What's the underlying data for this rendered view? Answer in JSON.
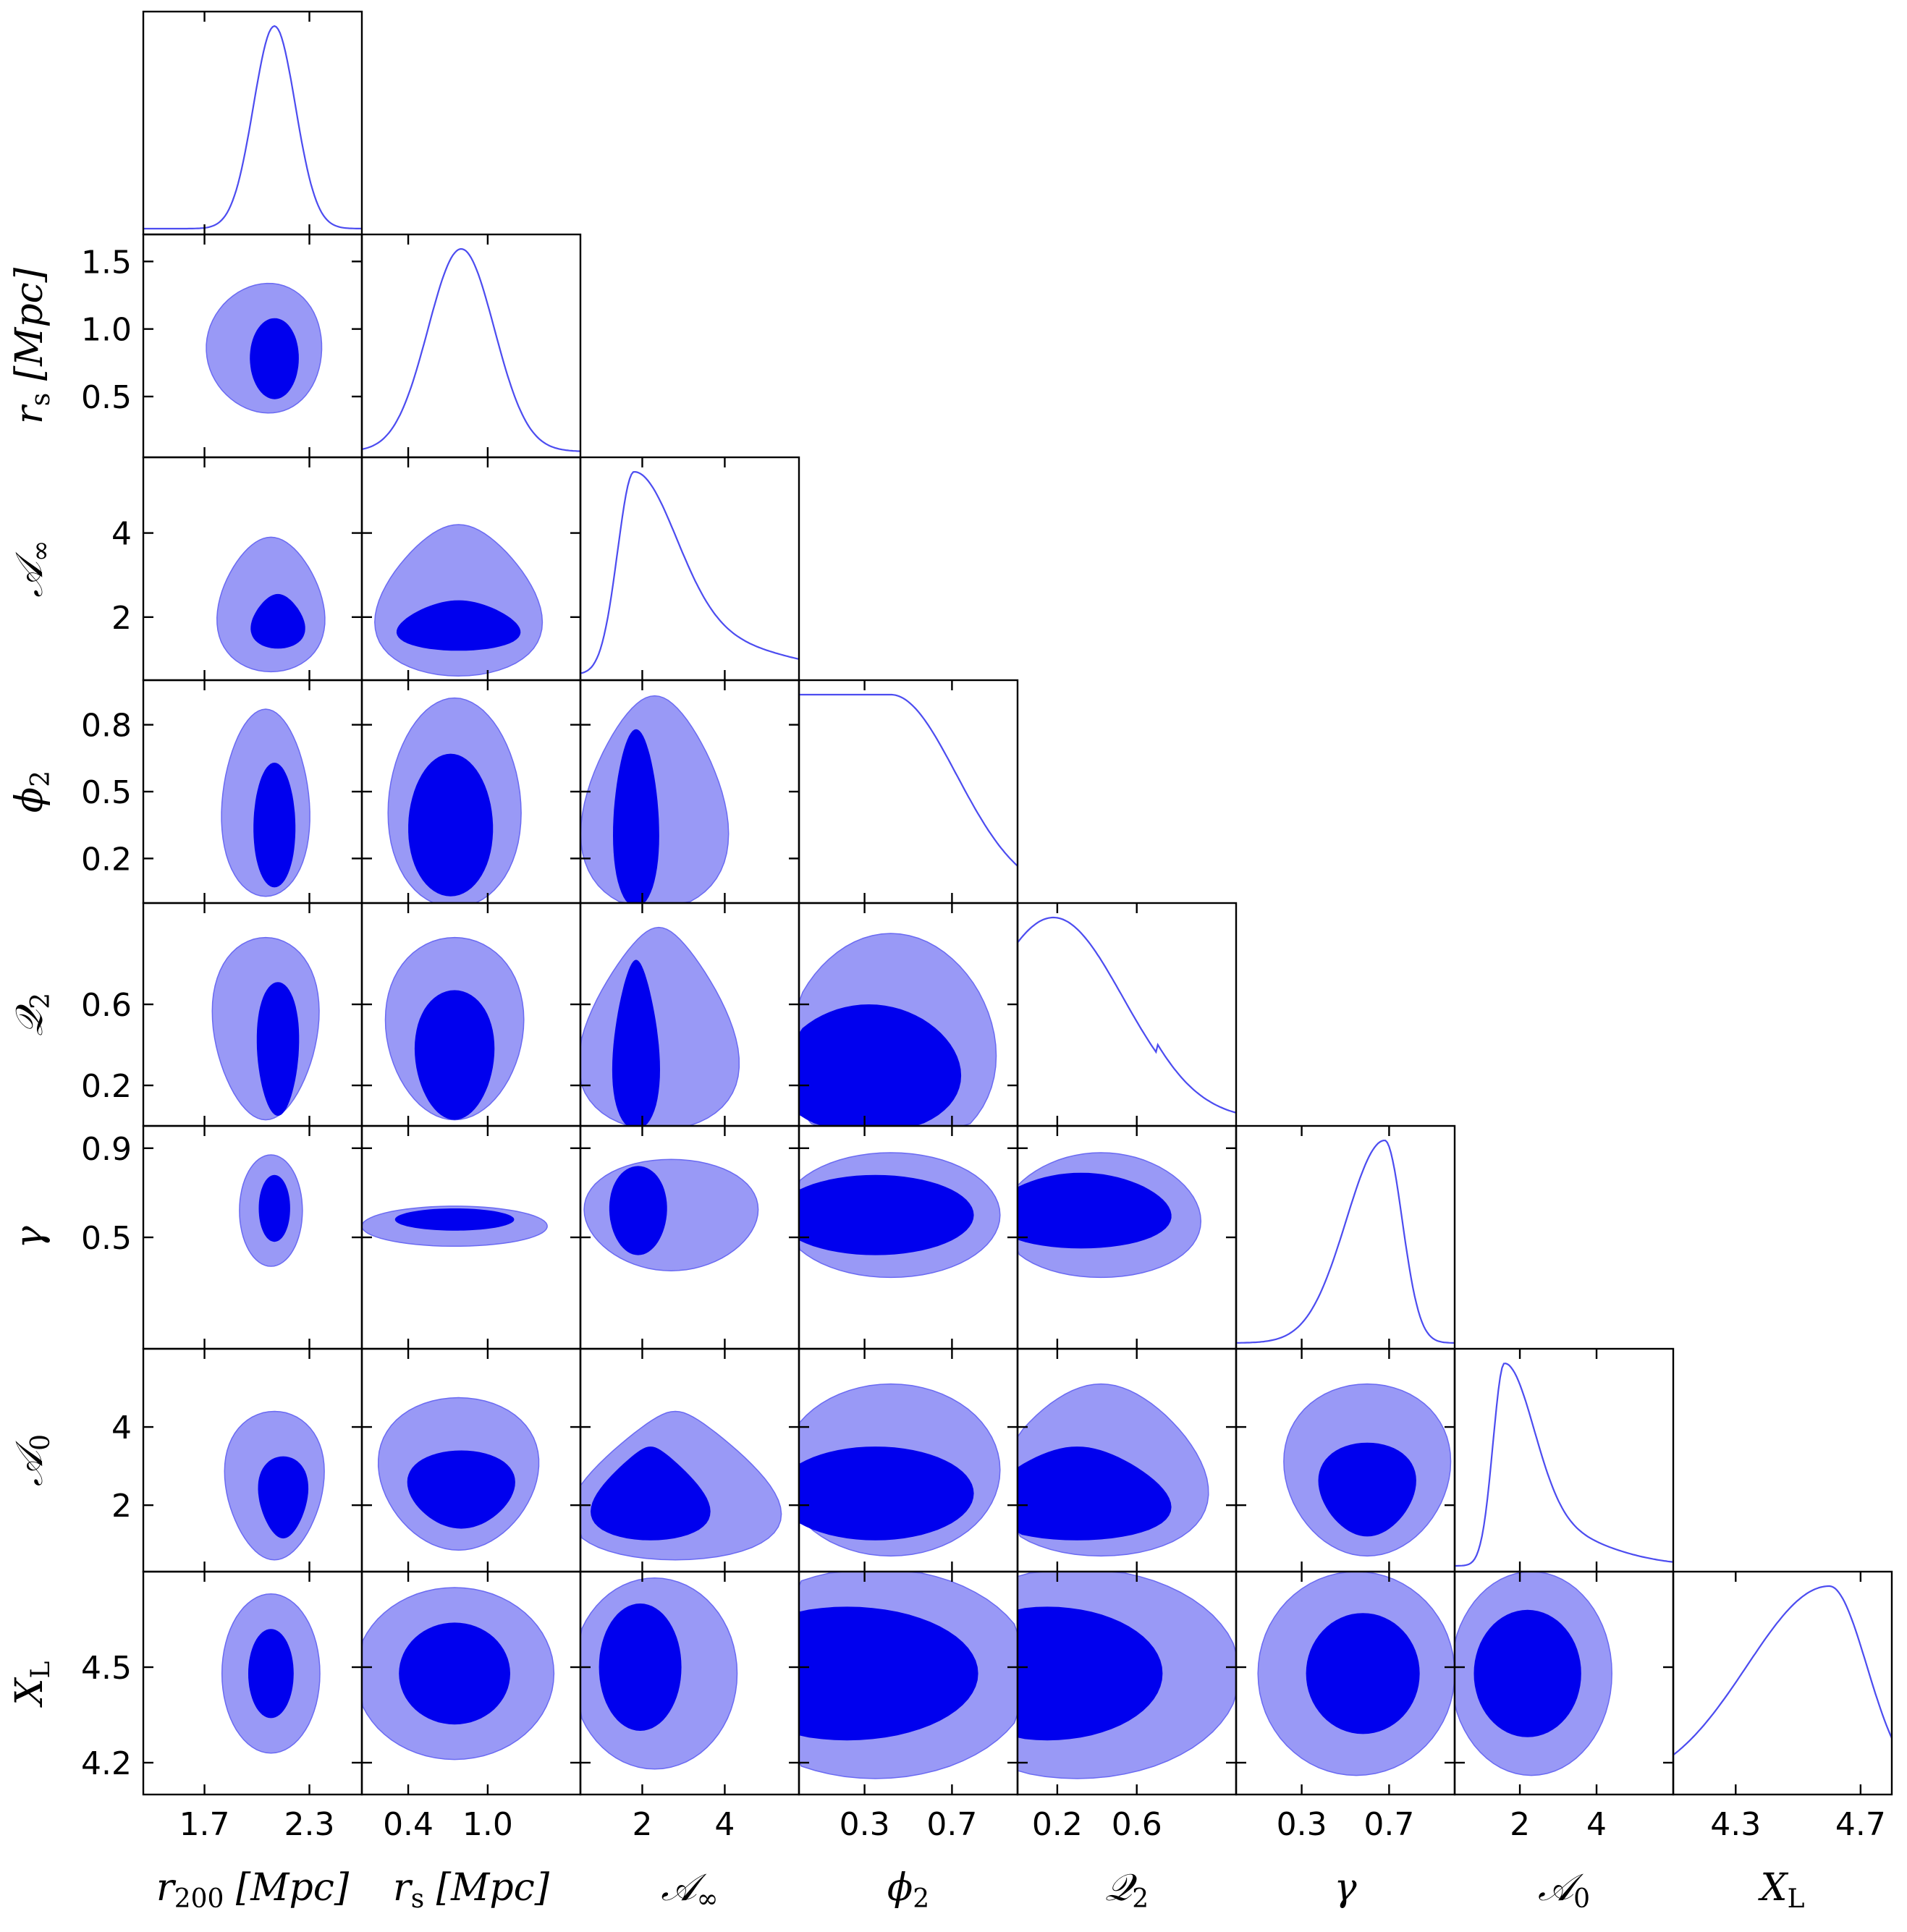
{
  "chart_data": {
    "type": "corner-plot",
    "parameters": [
      {
        "key": "r200",
        "label": "r",
        "sub": "200",
        "unit": " [Mpc]",
        "range": [
          1.35,
          2.6
        ],
        "ticks": [
          1.7,
          2.3
        ],
        "tick_labels": [
          "1.7",
          "2.3"
        ]
      },
      {
        "key": "rs",
        "label": "r",
        "sub": "s",
        "unit": " [Mpc]",
        "range": [
          0.05,
          1.7
        ],
        "ticks": [
          0.5,
          1.0,
          1.5
        ],
        "tick_labels": [
          "0.5",
          "1.0",
          "1.5"
        ],
        "xticks": [
          0.4,
          1.0
        ],
        "xtick_labels": [
          "0.4",
          "1.0"
        ]
      },
      {
        "key": "Ainf",
        "label": "𝒜",
        "sub": "∞",
        "unit": "",
        "range": [
          0.5,
          5.8
        ],
        "ticks": [
          2,
          4
        ],
        "tick_labels": [
          "2",
          "4"
        ]
      },
      {
        "key": "phi2",
        "label": "ϕ",
        "sub": "2",
        "unit": "",
        "range": [
          0.0,
          1.0
        ],
        "ticks": [
          0.2,
          0.5,
          0.8
        ],
        "tick_labels": [
          "0.2",
          "0.5",
          "0.8"
        ],
        "xticks": [
          0.3,
          0.7
        ],
        "xtick_labels": [
          "0.3",
          "0.7"
        ]
      },
      {
        "key": "Q2",
        "label": "𝒬",
        "sub": "2",
        "unit": "",
        "range": [
          0.0,
          1.1
        ],
        "ticks": [
          0.2,
          0.6
        ],
        "tick_labels": [
          "0.2",
          "0.6"
        ]
      },
      {
        "key": "gamma",
        "label": "γ",
        "sub": "",
        "unit": "",
        "range": [
          0.0,
          1.0
        ],
        "ticks": [
          0.5,
          0.9
        ],
        "tick_labels": [
          "0.5",
          "0.9"
        ],
        "xticks": [
          0.3,
          0.7
        ],
        "xtick_labels": [
          "0.3",
          "0.7"
        ]
      },
      {
        "key": "A0",
        "label": "𝒜",
        "sub": "0",
        "unit": "",
        "range": [
          0.3,
          6.0
        ],
        "ticks": [
          2,
          4
        ],
        "tick_labels": [
          "2",
          "4"
        ]
      },
      {
        "key": "XL",
        "label": "X",
        "sub": "L",
        "unit": "",
        "range": [
          4.1,
          4.8
        ],
        "ticks": [
          4.2,
          4.5
        ],
        "tick_labels": [
          "4.2",
          "4.5"
        ],
        "xticks": [
          4.3,
          4.7
        ],
        "xtick_labels": [
          "4.3",
          "4.7"
        ]
      }
    ],
    "marginals": [
      {
        "param": "r200",
        "mode": 2.1,
        "sigma": 0.12
      },
      {
        "param": "rs",
        "mode": 0.8,
        "sigma": 0.25
      },
      {
        "param": "Ainf",
        "mode": 1.8,
        "sigma": 0.4,
        "tail": "right"
      },
      {
        "param": "phi2",
        "mode": 0.42,
        "sigma": 0.3,
        "shape": "broad"
      },
      {
        "param": "Q2",
        "mode": 0.18,
        "sigma": 0.35,
        "shape": "decreasing"
      },
      {
        "param": "gamma",
        "mode": 0.68,
        "sigma": 0.08,
        "tail": "left"
      },
      {
        "param": "A0",
        "mode": 1.6,
        "sigma": 0.3,
        "tail": "right"
      },
      {
        "param": "XL",
        "mode": 4.6,
        "sigma": 0.12,
        "tail": "left"
      }
    ],
    "contour_levels": [
      "68%",
      "95%"
    ],
    "colors": {
      "inner": "#0000ee",
      "outer": "#9999f6",
      "outer_edge": "#6a6af2",
      "line": "#4c4cf0",
      "frame": "#000000"
    },
    "grid": false
  }
}
